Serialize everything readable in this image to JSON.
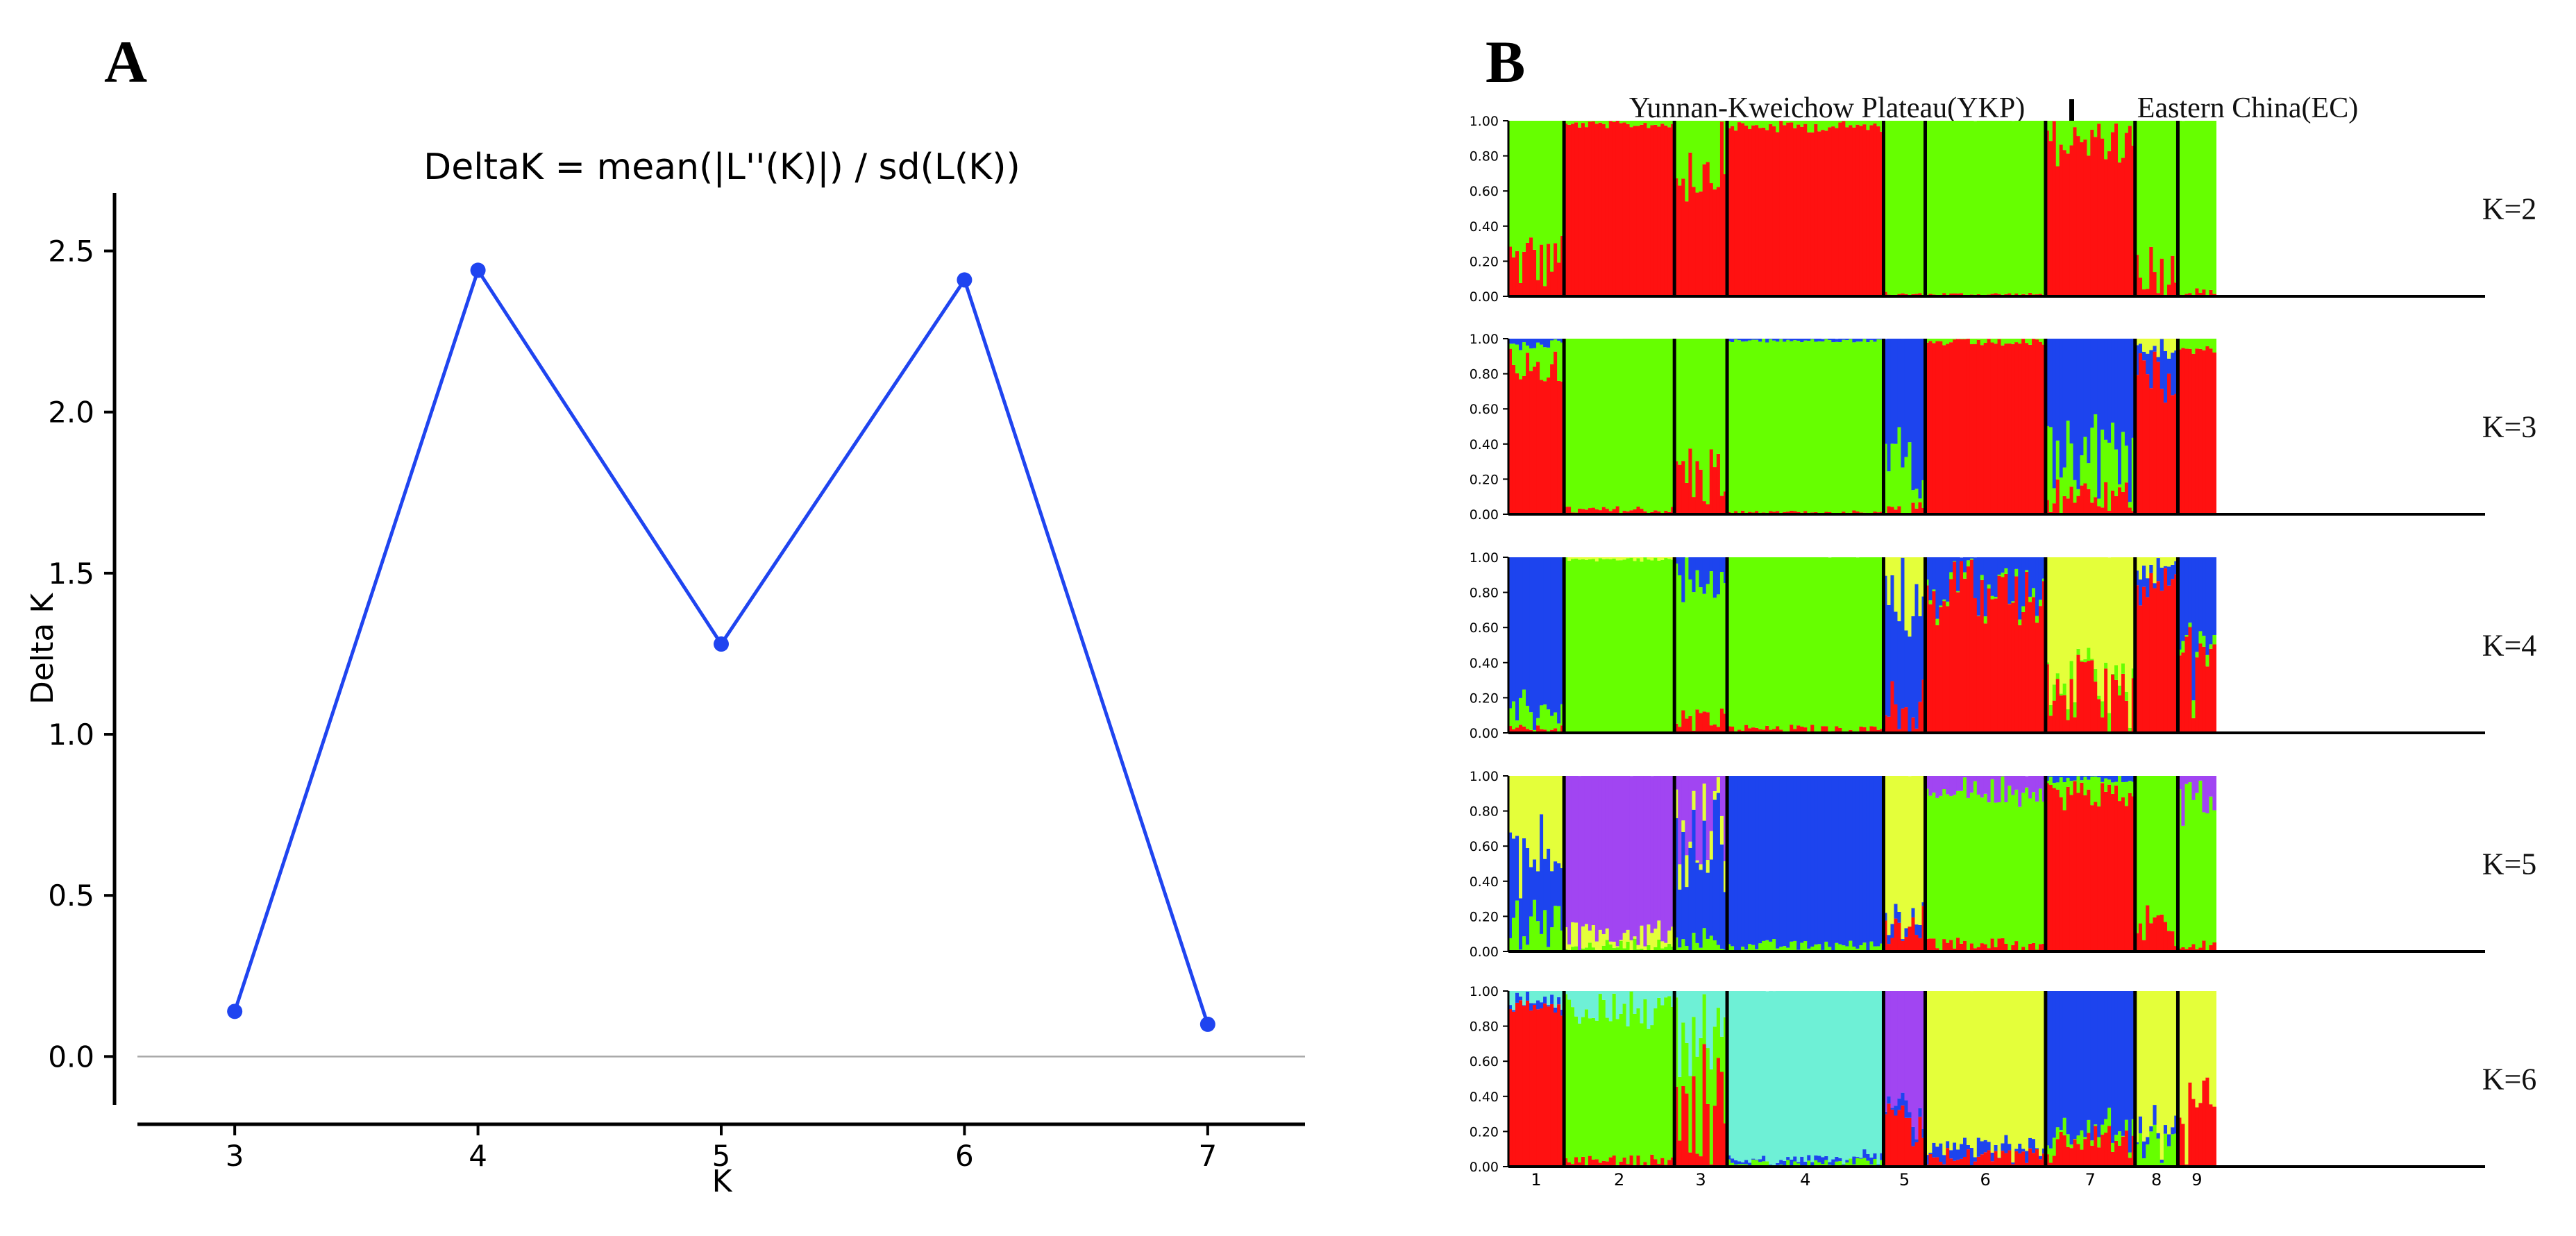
{
  "panel_a": {
    "panel_label": "A",
    "title": "DeltaK = mean(|L''(K)|) / sd(L(K))",
    "xlabel": "K",
    "ylabel": "Delta K"
  },
  "panel_b": {
    "panel_label": "B",
    "region_left": "Yunnan-Kweichow Plateau(YKP)",
    "region_right": "Eastern China(EC)",
    "y_tick_labels": [
      "0.00",
      "0.20",
      "0.40",
      "0.60",
      "0.80",
      "1.00"
    ],
    "population_labels": [
      "1",
      "2",
      "3",
      "4",
      "5",
      "6",
      "7",
      "8",
      "9"
    ]
  },
  "colors": {
    "line": "#1f44f0",
    "red": "#ff1111",
    "green": "#66ff00",
    "blue": "#1d44ee",
    "yellow": "#e4ff3a",
    "purple": "#a145f2",
    "cyan": "#6ef0d6"
  },
  "chart_data": [
    {
      "type": "line",
      "title": "DeltaK = mean(|L''(K)|) / sd(L(K))",
      "xlabel": "K",
      "ylabel": "Delta K",
      "x": [
        3,
        4,
        5,
        6,
        7
      ],
      "y": [
        0.14,
        2.44,
        1.28,
        2.41,
        0.1
      ],
      "xlim": [
        2.6,
        7.4
      ],
      "ylim": [
        -0.15,
        2.68
      ],
      "xticks": [
        3,
        4,
        5,
        6,
        7
      ],
      "yticks": [
        0.0,
        0.5,
        1.0,
        1.5,
        2.0,
        2.5
      ],
      "ytick_labels": [
        "0.0",
        "0.5",
        "1.0",
        "1.5",
        "2.0",
        "2.5"
      ],
      "reference_line_y": 0.0
    },
    {
      "type": "bar",
      "subtype": "stacked-admixture",
      "ylim": [
        0,
        1
      ],
      "populations": [
        "1",
        "2",
        "3",
        "4",
        "5",
        "6",
        "7",
        "8",
        "9"
      ],
      "population_proportions": [
        0.0582,
        0.1155,
        0.0551,
        0.1637,
        0.0436,
        0.1259,
        0.0936,
        0.0448,
        0.0399
      ],
      "regions": [
        {
          "name": "Yunnan-Kweichow Plateau(YKP)",
          "populations": [
            "1",
            "2",
            "3",
            "4",
            "5"
          ]
        },
        {
          "name": "Eastern China(EC)",
          "populations": [
            "6",
            "7",
            "8",
            "9"
          ]
        }
      ],
      "panels": [
        {
          "label": "K=2",
          "population_membership": [
            {
              "pop": "1",
              "green": 0.8,
              "red": 0.2
            },
            {
              "pop": "2",
              "red": 0.98,
              "green": 0.02
            },
            {
              "pop": "3",
              "red": 0.75,
              "green": 0.25
            },
            {
              "pop": "4",
              "red": 0.97,
              "green": 0.03
            },
            {
              "pop": "5",
              "green": 0.99,
              "red": 0.01
            },
            {
              "pop": "6",
              "green": 0.99,
              "red": 0.01
            },
            {
              "pop": "7",
              "red": 0.88,
              "green": 0.12
            },
            {
              "pop": "8",
              "green": 0.85,
              "red": 0.15
            },
            {
              "pop": "9",
              "green": 0.98,
              "red": 0.02
            }
          ]
        },
        {
          "label": "K=3",
          "population_membership": [
            {
              "pop": "1",
              "red": 0.85,
              "green": 0.12,
              "blue": 0.03
            },
            {
              "pop": "2",
              "green": 0.98,
              "red": 0.02
            },
            {
              "pop": "3",
              "green": 0.78,
              "red": 0.22
            },
            {
              "pop": "4",
              "green": 0.98,
              "red": 0.01,
              "blue": 0.01
            },
            {
              "pop": "5",
              "blue": 0.72,
              "green": 0.25,
              "red": 0.03
            },
            {
              "pop": "6",
              "red": 0.98,
              "green": 0.02
            },
            {
              "pop": "7",
              "blue": 0.62,
              "green": 0.3,
              "red": 0.08
            },
            {
              "pop": "8",
              "red": 0.8,
              "blue": 0.15,
              "yellow": 0.05
            },
            {
              "pop": "9",
              "red": 0.96,
              "green": 0.04
            }
          ]
        },
        {
          "label": "K=4",
          "population_membership": [
            {
              "pop": "1",
              "blue": 0.88,
              "green": 0.1,
              "red": 0.02
            },
            {
              "pop": "2",
              "green": 0.99,
              "yellow": 0.01
            },
            {
              "pop": "3",
              "green": 0.8,
              "blue": 0.13,
              "red": 0.07
            },
            {
              "pop": "4",
              "green": 0.98,
              "red": 0.02
            },
            {
              "pop": "5",
              "blue": 0.6,
              "yellow": 0.25,
              "red": 0.15
            },
            {
              "pop": "6",
              "red": 0.8,
              "blue": 0.18,
              "green": 0.02
            },
            {
              "pop": "7",
              "yellow": 0.72,
              "red": 0.23,
              "green": 0.05
            },
            {
              "pop": "8",
              "red": 0.84,
              "yellow": 0.08,
              "blue": 0.08
            },
            {
              "pop": "9",
              "blue": 0.55,
              "red": 0.4,
              "green": 0.05
            }
          ]
        },
        {
          "label": "K=5",
          "population_membership": [
            {
              "pop": "1",
              "yellow": 0.45,
              "blue": 0.4,
              "green": 0.15
            },
            {
              "pop": "2",
              "purple": 0.9,
              "yellow": 0.07,
              "green": 0.03
            },
            {
              "pop": "3",
              "blue": 0.55,
              "purple": 0.3,
              "yellow": 0.1,
              "green": 0.05
            },
            {
              "pop": "4",
              "blue": 0.97,
              "green": 0.03
            },
            {
              "pop": "5",
              "yellow": 0.82,
              "red": 0.13,
              "blue": 0.05
            },
            {
              "pop": "6",
              "green": 0.88,
              "purple": 0.08,
              "red": 0.04
            },
            {
              "pop": "7",
              "red": 0.9,
              "green": 0.08,
              "blue": 0.02
            },
            {
              "pop": "8",
              "green": 0.86,
              "red": 0.14
            },
            {
              "pop": "9",
              "green": 0.82,
              "purple": 0.14,
              "red": 0.04
            }
          ]
        },
        {
          "label": "K=6",
          "population_membership": [
            {
              "pop": "1",
              "red": 0.92,
              "cyan": 0.05,
              "blue": 0.03
            },
            {
              "pop": "2",
              "green": 0.85,
              "cyan": 0.12,
              "red": 0.03
            },
            {
              "pop": "3",
              "green": 0.4,
              "red": 0.35,
              "cyan": 0.25
            },
            {
              "pop": "4",
              "cyan": 0.96,
              "blue": 0.02,
              "green": 0.02
            },
            {
              "pop": "5",
              "purple": 0.72,
              "red": 0.23,
              "blue": 0.05
            },
            {
              "pop": "6",
              "yellow": 0.9,
              "red": 0.05,
              "blue": 0.05
            },
            {
              "pop": "7",
              "blue": 0.82,
              "red": 0.12,
              "green": 0.06
            },
            {
              "pop": "8",
              "yellow": 0.82,
              "green": 0.12,
              "blue": 0.06
            },
            {
              "pop": "9",
              "yellow": 0.7,
              "red": 0.3
            }
          ]
        }
      ]
    }
  ]
}
